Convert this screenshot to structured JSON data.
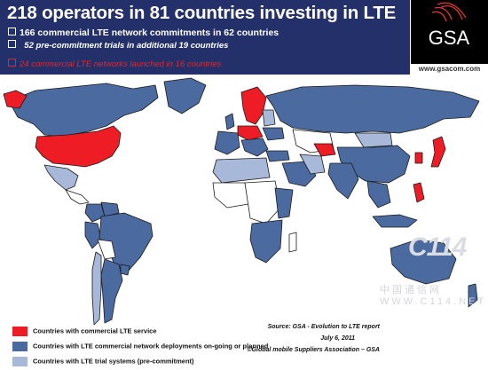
{
  "header": {
    "title": "218 operators in 81 countries investing in LTE",
    "bullet1": "166 commercial LTE network commitments in 62 countries",
    "bullet2": "52 pre-commitment trials in additional 19 countries",
    "bullet3": "24 commercial LTE networks launched in 16 countries"
  },
  "logo": {
    "text": "GSA",
    "url": "www.gsacom.com"
  },
  "legend": [
    {
      "label": "Countries with commercial LTE service",
      "color": "#ee1c24"
    },
    {
      "label": "Countries with LTE commercial network deployments on-going or planned",
      "color": "#4a6aa0"
    },
    {
      "label": "Countries with LTE trial systems (pre-commitment)",
      "color": "#a7b8d8"
    }
  ],
  "source": {
    "line1": "Source: GSA - Evolution to LTE report",
    "line2": "July 6, 2011",
    "line3": "©Global mobile Suppliers Association – GSA"
  },
  "watermark": {
    "text": "C114",
    "sub": "中国通信网",
    "url": "WWW.C114.NET"
  },
  "colors": {
    "commercial": "#ee1c24",
    "committed": "#4a6aa0",
    "trial": "#a7b8d8",
    "other": "#ffffff",
    "ocean": "#ffffff",
    "header_bg": "#24306a"
  }
}
